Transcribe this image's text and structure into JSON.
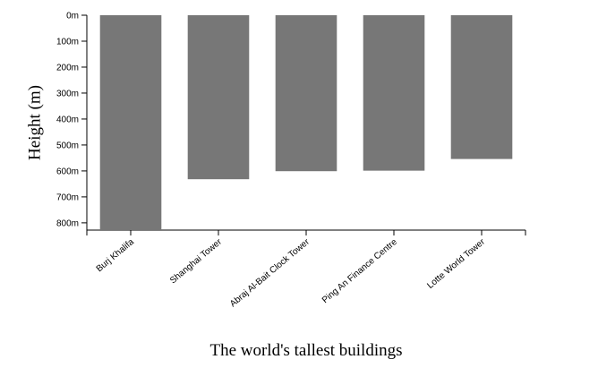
{
  "chart_data": {
    "type": "bar",
    "title": "The world's tallest buildings",
    "xlabel": "",
    "ylabel": "Height (m)",
    "categories": [
      "Burj Khalifa",
      "Shanghai Tower",
      "Abraj Al-Bait Clock Tower",
      "Ping An Finance Centre",
      "Lotte World Tower"
    ],
    "values": [
      828,
      632,
      601,
      599,
      554
    ],
    "y_axis_orientation": "inverted (0 at top, increasing downward)",
    "ylim": [
      0,
      828
    ],
    "y_ticks": [
      0,
      100,
      200,
      300,
      400,
      500,
      600,
      700,
      800
    ],
    "y_tick_labels": [
      "0m",
      "100m",
      "200m",
      "300m",
      "400m",
      "500m",
      "600m",
      "700m",
      "800m"
    ],
    "bar_color": "#777777",
    "grid": false,
    "legend": "none"
  }
}
